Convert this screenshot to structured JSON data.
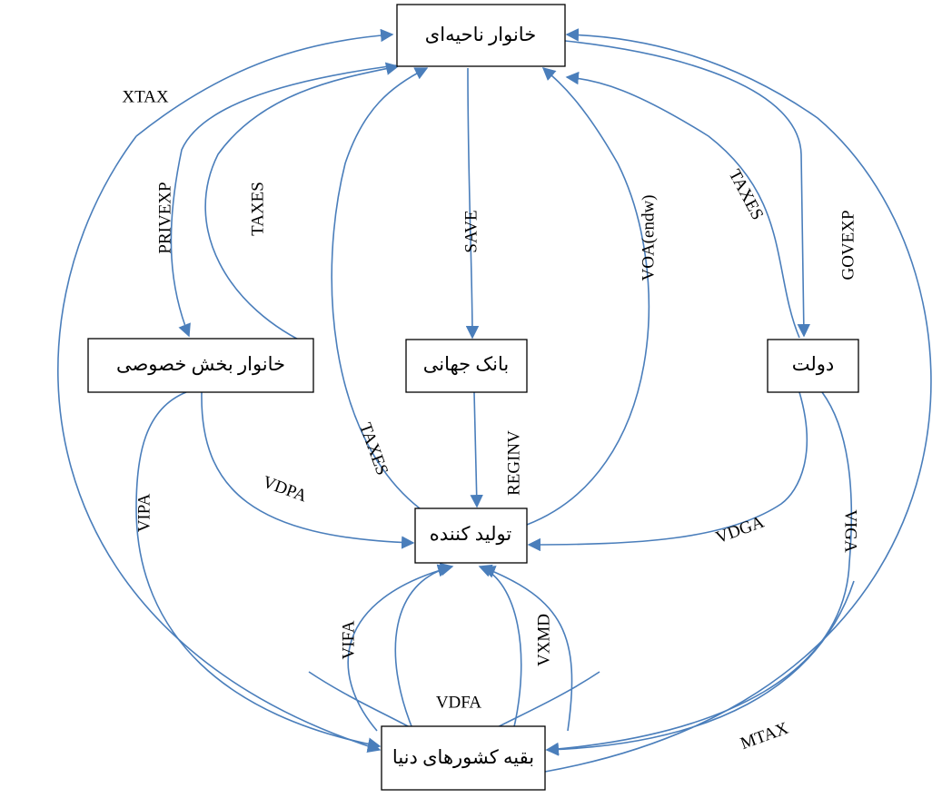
{
  "nodes": [
    {
      "label": "خانوار ناحیه‌ای"
    },
    {
      "label": "خانوار بخش خصوصی"
    },
    {
      "label": "بانک جهانی"
    },
    {
      "label": "دولت"
    },
    {
      "label": "تولید کننده"
    },
    {
      "label": "بقیه کشورهای دنیا"
    }
  ],
  "edges": [
    {
      "label": "XTAX"
    },
    {
      "label": "PRIVEXP"
    },
    {
      "label": "TAXES"
    },
    {
      "label": "SAVE"
    },
    {
      "label": "VOA(endw)"
    },
    {
      "label": "TAXES"
    },
    {
      "label": "GOVEXP"
    },
    {
      "label": "VIPA"
    },
    {
      "label": "VDPA"
    },
    {
      "label": "TAXES"
    },
    {
      "label": "REGINV"
    },
    {
      "label": "VDGA"
    },
    {
      "label": "VIGA"
    },
    {
      "label": "VIFA"
    },
    {
      "label": "VDFA"
    },
    {
      "label": "VXMD"
    },
    {
      "label": "MTAX"
    }
  ]
}
